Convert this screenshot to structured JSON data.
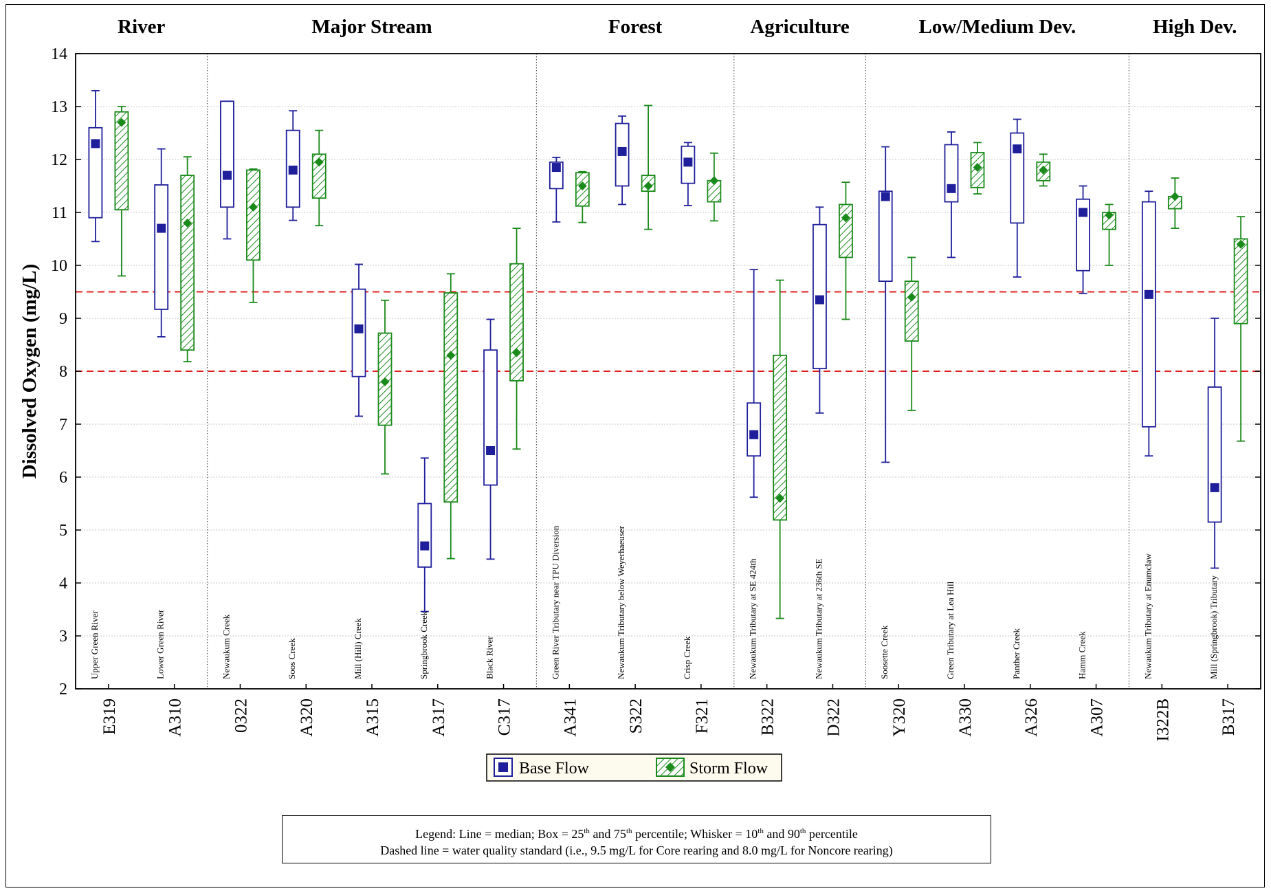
{
  "chart_data": {
    "type": "box",
    "ylabel": "Dissolved Oxygen (mg/L)",
    "ylim": [
      2,
      14
    ],
    "yticks": [
      2,
      3,
      4,
      5,
      6,
      7,
      8,
      9,
      10,
      11,
      12,
      13,
      14
    ],
    "grid": true,
    "reference_lines": [
      9.5,
      8.0
    ],
    "colors": {
      "base": "#1f1f9c",
      "storm": "#1a8a1a",
      "standard": "#e02020"
    },
    "groups": [
      {
        "label": "River",
        "sites": [
          "E319",
          "A310"
        ]
      },
      {
        "label": "Major Stream",
        "sites": [
          "0322",
          "A320",
          "A315",
          "A317",
          "C317"
        ]
      },
      {
        "label": "Forest",
        "sites": [
          "A341",
          "S322",
          "F321"
        ]
      },
      {
        "label": "Agriculture",
        "sites": [
          "B322",
          "D322"
        ]
      },
      {
        "label": "Low/Medium Dev.",
        "sites": [
          "Y320",
          "A330",
          "A326",
          "A307"
        ]
      },
      {
        "label": "High Dev.",
        "sites": [
          "I322B",
          "B317"
        ]
      }
    ],
    "sites": [
      {
        "code": "E319",
        "name": "Upper Green River",
        "base": {
          "p10": 10.45,
          "p25": 10.9,
          "median": 12.3,
          "p75": 12.6,
          "p90": 13.3
        },
        "storm": {
          "p10": 9.8,
          "p25": 11.05,
          "median": 12.7,
          "p75": 12.9,
          "p90": 13.0
        }
      },
      {
        "code": "A310",
        "name": "Lower Green River",
        "base": {
          "p10": 8.65,
          "p25": 9.17,
          "median": 10.7,
          "p75": 11.52,
          "p90": 12.2
        },
        "storm": {
          "p10": 8.18,
          "p25": 8.4,
          "median": 10.8,
          "p75": 11.7,
          "p90": 12.05
        }
      },
      {
        "code": "0322",
        "name": "Newaukum Creek",
        "base": {
          "p10": 10.5,
          "p25": 11.1,
          "median": 11.7,
          "p75": 13.1,
          "p90": 13.1
        },
        "storm": {
          "p10": 9.3,
          "p25": 10.1,
          "median": 11.1,
          "p75": 11.8,
          "p90": 11.82
        }
      },
      {
        "code": "A320",
        "name": "Soos Creek",
        "base": {
          "p10": 10.85,
          "p25": 11.1,
          "median": 11.8,
          "p75": 12.55,
          "p90": 12.92
        },
        "storm": {
          "p10": 10.75,
          "p25": 11.27,
          "median": 11.95,
          "p75": 12.1,
          "p90": 12.55
        }
      },
      {
        "code": "A315",
        "name": "Mill (Hill) Creek",
        "base": {
          "p10": 7.15,
          "p25": 7.9,
          "median": 8.8,
          "p75": 9.55,
          "p90": 10.02
        },
        "storm": {
          "p10": 6.06,
          "p25": 6.98,
          "median": 7.8,
          "p75": 8.72,
          "p90": 9.34
        }
      },
      {
        "code": "A317",
        "name": "Springbrook Creek",
        "base": {
          "p10": 3.46,
          "p25": 4.3,
          "median": 4.7,
          "p75": 5.5,
          "p90": 6.36
        },
        "storm": {
          "p10": 4.46,
          "p25": 5.53,
          "median": 8.3,
          "p75": 9.48,
          "p90": 9.84
        }
      },
      {
        "code": "C317",
        "name": "Black River",
        "base": {
          "p10": 4.45,
          "p25": 5.85,
          "median": 6.5,
          "p75": 8.4,
          "p90": 8.98
        },
        "storm": {
          "p10": 6.53,
          "p25": 7.82,
          "median": 8.35,
          "p75": 10.03,
          "p90": 10.7
        }
      },
      {
        "code": "A341",
        "name": "Green River Tributary near TPU Diversion",
        "base": {
          "p10": 10.82,
          "p25": 11.45,
          "median": 11.85,
          "p75": 11.95,
          "p90": 12.04
        },
        "storm": {
          "p10": 10.81,
          "p25": 11.12,
          "median": 11.5,
          "p75": 11.75,
          "p90": 11.77
        }
      },
      {
        "code": "S322",
        "name": "Newaukum Tributary below Weyerhaeuser",
        "base": {
          "p10": 11.15,
          "p25": 11.5,
          "median": 12.15,
          "p75": 12.68,
          "p90": 12.82
        },
        "storm": {
          "p10": 10.68,
          "p25": 11.4,
          "median": 11.5,
          "p75": 11.7,
          "p90": 13.02
        }
      },
      {
        "code": "F321",
        "name": "Crisp Creek",
        "base": {
          "p10": 11.13,
          "p25": 11.55,
          "median": 11.95,
          "p75": 12.25,
          "p90": 12.32
        },
        "storm": {
          "p10": 10.84,
          "p25": 11.2,
          "median": 11.6,
          "p75": 11.6,
          "p90": 12.12
        }
      },
      {
        "code": "B322",
        "name": "Newaukum Tributary at SE 424th",
        "base": {
          "p10": 5.62,
          "p25": 6.4,
          "median": 6.8,
          "p75": 7.4,
          "p90": 9.92
        },
        "storm": {
          "p10": 3.33,
          "p25": 5.19,
          "median": 5.6,
          "p75": 8.3,
          "p90": 9.72
        }
      },
      {
        "code": "D322",
        "name": "Newaukum Tributary at 236th SE",
        "base": {
          "p10": 7.21,
          "p25": 8.05,
          "median": 9.35,
          "p75": 10.77,
          "p90": 11.1
        },
        "storm": {
          "p10": 8.98,
          "p25": 10.15,
          "median": 10.9,
          "p75": 11.15,
          "p90": 11.57
        }
      },
      {
        "code": "Y320",
        "name": "Soosette Creek",
        "base": {
          "p10": 6.28,
          "p25": 9.7,
          "median": 11.3,
          "p75": 11.4,
          "p90": 12.24
        },
        "storm": {
          "p10": 7.26,
          "p25": 8.57,
          "median": 9.4,
          "p75": 9.7,
          "p90": 10.15
        }
      },
      {
        "code": "A330",
        "name": "Green Tributary at Lea Hill",
        "base": {
          "p10": 10.15,
          "p25": 11.2,
          "median": 11.45,
          "p75": 12.28,
          "p90": 12.52
        },
        "storm": {
          "p10": 11.35,
          "p25": 11.47,
          "median": 11.85,
          "p75": 12.13,
          "p90": 12.32
        }
      },
      {
        "code": "A326",
        "name": "Panther Creek",
        "base": {
          "p10": 9.78,
          "p25": 10.8,
          "median": 12.2,
          "p75": 12.5,
          "p90": 12.76
        },
        "storm": {
          "p10": 11.5,
          "p25": 11.6,
          "median": 11.8,
          "p75": 11.95,
          "p90": 12.1
        }
      },
      {
        "code": "A307",
        "name": "Hamm Creek",
        "base": {
          "p10": 9.47,
          "p25": 9.9,
          "median": 11.0,
          "p75": 11.25,
          "p90": 11.5
        },
        "storm": {
          "p10": 10.0,
          "p25": 10.68,
          "median": 10.95,
          "p75": 11.0,
          "p90": 11.15
        }
      },
      {
        "code": "I322B",
        "name": "Newaukum Tributary at Enumclaw",
        "base": {
          "p10": 6.4,
          "p25": 6.95,
          "median": 9.45,
          "p75": 11.2,
          "p90": 11.4
        },
        "storm": {
          "p10": 10.7,
          "p25": 11.07,
          "median": 11.3,
          "p75": 11.3,
          "p90": 11.65
        }
      },
      {
        "code": "B317",
        "name": "Mill (Springbrook) Tributary",
        "base": {
          "p10": 4.28,
          "p25": 5.15,
          "median": 5.8,
          "p75": 7.7,
          "p90": 9.0
        },
        "storm": {
          "p10": 6.68,
          "p25": 8.9,
          "median": 10.4,
          "p75": 10.5,
          "p90": 10.92
        }
      }
    ],
    "legend": {
      "placement": "bottom-center",
      "entries": [
        "Base Flow",
        "Storm Flow"
      ]
    }
  },
  "note": {
    "line1_a": "Legend: Line = median; Box = 25",
    "line1_sup1": "th",
    "line1_b": " and 75",
    "line1_sup2": "th",
    "line1_c": " percentile; Whisker = 10",
    "line1_sup3": "th",
    "line1_d": " and 90",
    "line1_sup4": "th",
    "line1_e": " percentile",
    "line2": "Dashed line = water quality standard (i.e., 9.5 mg/L for Core rearing and 8.0 mg/L for Noncore rearing)"
  }
}
